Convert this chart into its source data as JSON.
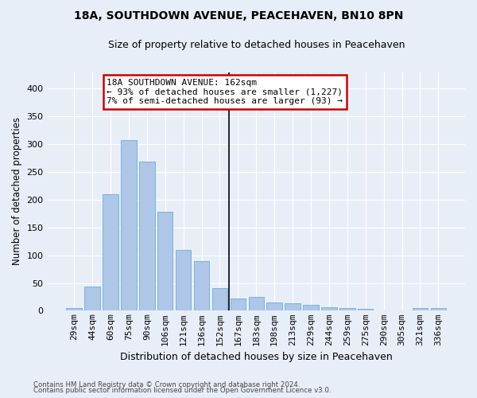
{
  "title": "18A, SOUTHDOWN AVENUE, PEACEHAVEN, BN10 8PN",
  "subtitle": "Size of property relative to detached houses in Peacehaven",
  "xlabel": "Distribution of detached houses by size in Peacehaven",
  "ylabel": "Number of detached properties",
  "categories": [
    "29sqm",
    "44sqm",
    "60sqm",
    "75sqm",
    "90sqm",
    "106sqm",
    "121sqm",
    "136sqm",
    "152sqm",
    "167sqm",
    "183sqm",
    "198sqm",
    "213sqm",
    "229sqm",
    "244sqm",
    "259sqm",
    "275sqm",
    "290sqm",
    "305sqm",
    "321sqm",
    "336sqm"
  ],
  "values": [
    5,
    43,
    210,
    308,
    269,
    178,
    109,
    90,
    40,
    22,
    25,
    15,
    14,
    11,
    6,
    5,
    3,
    0,
    0,
    5,
    5
  ],
  "bar_color": "#aec6e8",
  "bar_edge_color": "#6baed6",
  "background_color": "#e8eef8",
  "gridcolor": "#ffffff",
  "vline_x": 9,
  "annotation_line1": "18A SOUTHDOWN AVENUE: 162sqm",
  "annotation_line2": "← 93% of detached houses are smaller (1,227)",
  "annotation_line3": "7% of semi-detached houses are larger (93) →",
  "annotation_box_color": "#ffffff",
  "annotation_box_edge": "#cc0000",
  "footer1": "Contains HM Land Registry data © Crown copyright and database right 2024.",
  "footer2": "Contains public sector information licensed under the Open Government Licence v3.0.",
  "ylim": [
    0,
    430
  ],
  "yticks": [
    0,
    50,
    100,
    150,
    200,
    250,
    300,
    350,
    400
  ],
  "title_fontsize": 10,
  "subtitle_fontsize": 9,
  "xlabel_fontsize": 9,
  "ylabel_fontsize": 8.5,
  "tick_fontsize": 8,
  "annotation_fontsize": 8
}
